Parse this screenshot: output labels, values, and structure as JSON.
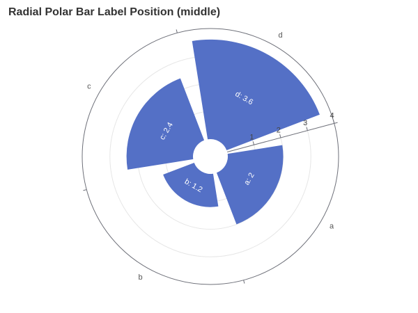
{
  "chart_data": {
    "type": "bar",
    "polar": true,
    "title": "Radial Polar Bar Label Position (middle)",
    "categories": [
      "a",
      "b",
      "c",
      "d"
    ],
    "values": [
      2,
      1.2,
      2.4,
      3.6
    ],
    "labels": [
      "a: 2",
      "b: 1.2",
      "c: 2.4",
      "d: 3.6"
    ],
    "radial_axis": {
      "min": 0,
      "max": 4,
      "ticks": [
        "1",
        "2",
        "3",
        "4"
      ]
    },
    "label_position": "middle",
    "grid": true,
    "legend": "none"
  },
  "colors": {
    "bar": "#5470c6",
    "axis": "#6e7079",
    "grid": "#e6e6e6",
    "title": "#333333"
  }
}
